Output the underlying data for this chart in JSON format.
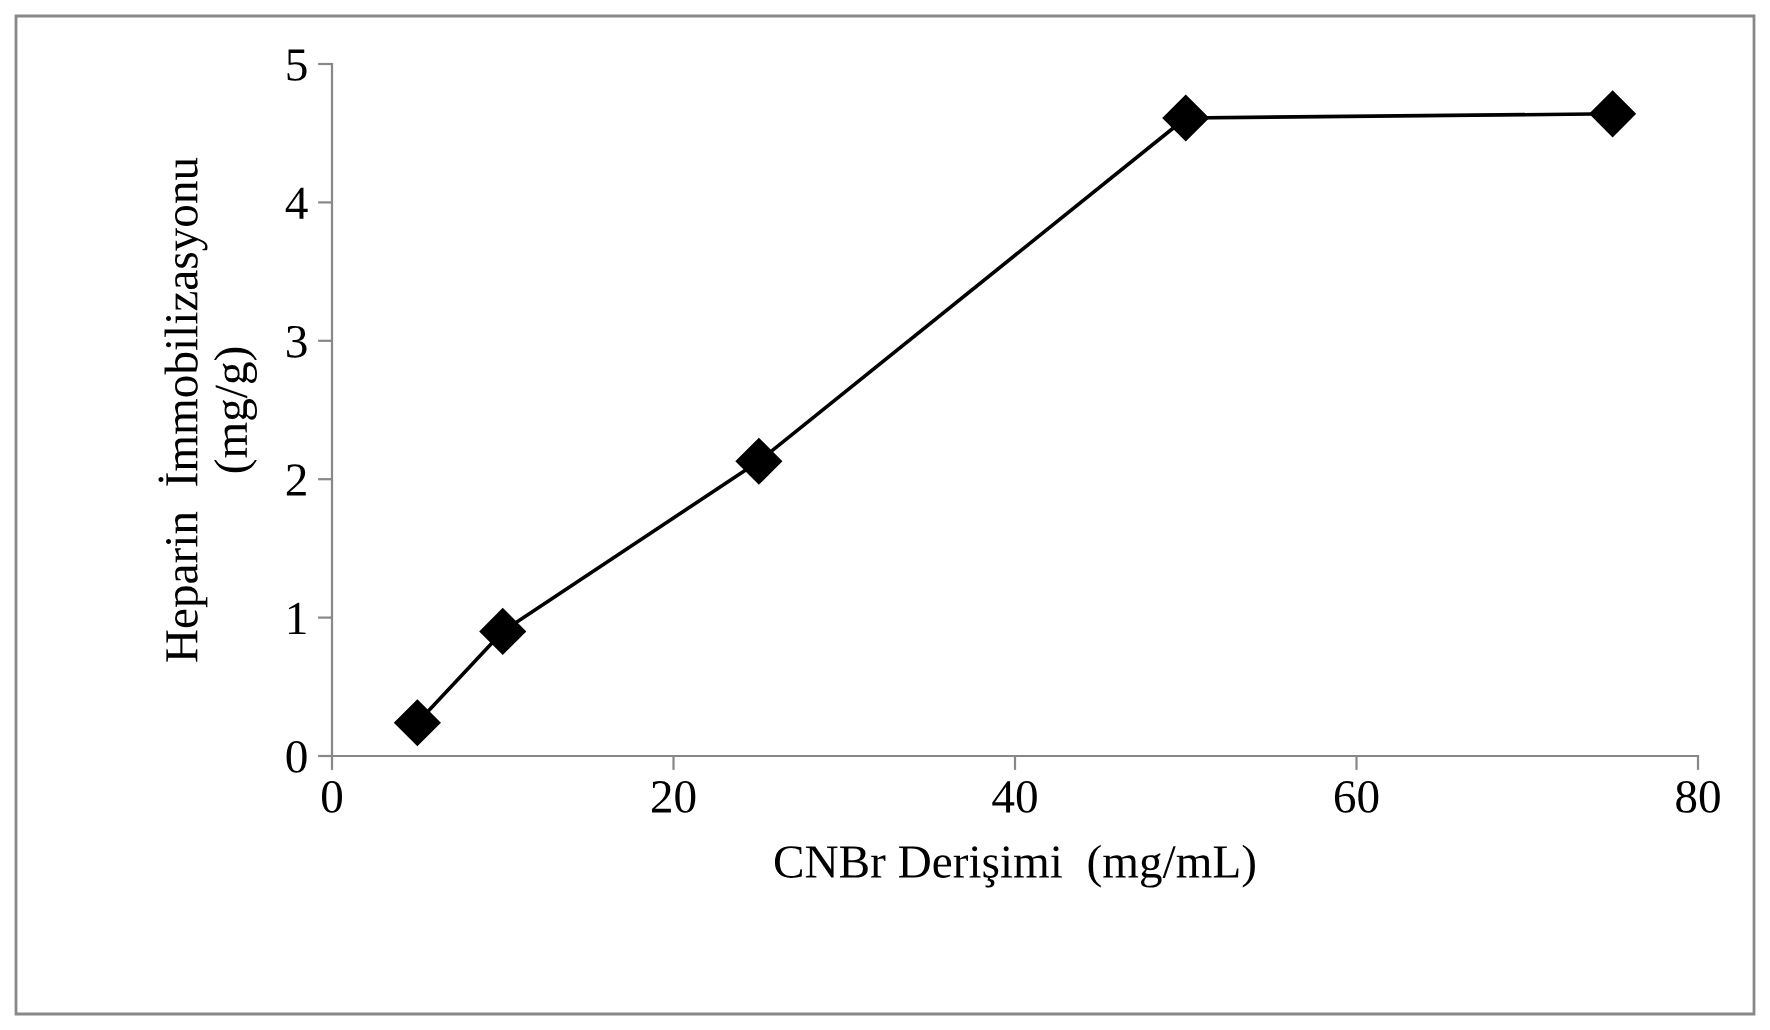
{
  "chart_data": {
    "type": "line",
    "xlabel": "CNBr Derişimi  (mg/mL)",
    "ylabel": "Heparin  İmmobilizasyonu\n(mg/g)",
    "x": [
      5,
      10,
      25,
      50,
      75
    ],
    "series": [
      {
        "color": "#000000",
        "values": [
          0.24,
          0.9,
          2.13,
          4.61,
          4.64
        ]
      }
    ],
    "xlim": [
      0,
      80
    ],
    "xticks": [
      0,
      20,
      40,
      60,
      80
    ],
    "ylim": [
      0,
      5
    ],
    "yticks": [
      0,
      1,
      2,
      3,
      4,
      5
    ],
    "marker": "diamond",
    "line_style": "solid",
    "grid": false,
    "legend": false
  }
}
